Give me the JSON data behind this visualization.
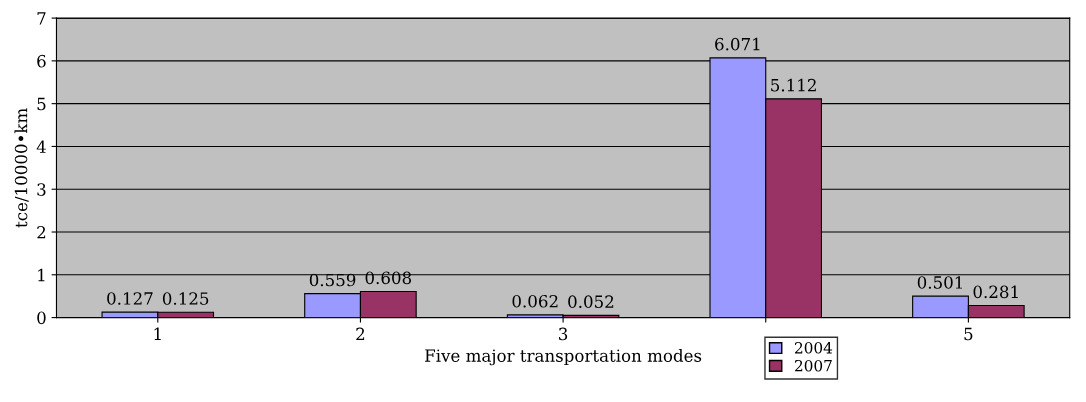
{
  "chart_data": {
    "type": "bar",
    "xlabel": "Five major transportation modes",
    "ylabel": "tce/10000•km",
    "categories": [
      "1",
      "2",
      "3",
      null,
      "5"
    ],
    "series": [
      {
        "name": "2004",
        "color": "#9999ff",
        "values": [
          0.127,
          0.559,
          0.062,
          6.071,
          0.501
        ]
      },
      {
        "name": "2007",
        "color": "#993366",
        "values": [
          0.125,
          0.608,
          0.052,
          5.112,
          0.281
        ]
      }
    ],
    "ylim": [
      0,
      7
    ],
    "yticks": [
      0,
      1,
      2,
      3,
      4,
      5,
      6,
      7
    ],
    "grid": "y",
    "legend": "bottom",
    "data_labels": true
  }
}
